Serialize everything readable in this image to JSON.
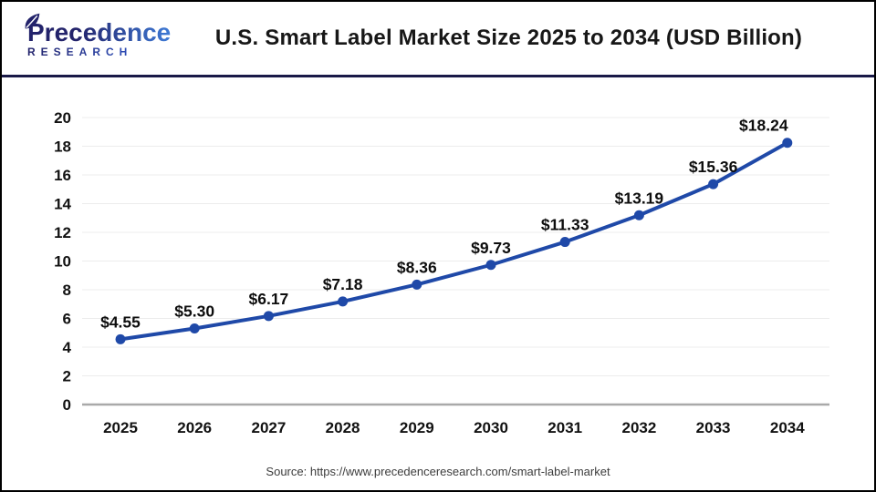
{
  "header": {
    "logo": {
      "name_line": "Precedence",
      "sub_line": "RESEARCH"
    },
    "title": "U.S. Smart Label Market Size 2025 to 2034 (USD Billion)"
  },
  "chart_data": {
    "type": "line",
    "title": "U.S. Smart Label Market Size 2025 to 2034 (USD Billion)",
    "categories": [
      "2025",
      "2026",
      "2027",
      "2028",
      "2029",
      "2030",
      "2031",
      "2032",
      "2033",
      "2034"
    ],
    "values": [
      4.55,
      5.3,
      6.17,
      7.18,
      8.36,
      9.73,
      11.33,
      13.19,
      15.36,
      18.24
    ],
    "point_labels": [
      "$4.55",
      "$5.30",
      "$6.17",
      "$7.18",
      "$8.36",
      "$9.73",
      "$11.33",
      "$13.19",
      "$15.36",
      "$18.24"
    ],
    "xlabel": "",
    "ylabel": "",
    "ylim": [
      0,
      20
    ],
    "ytick_step": 2,
    "grid": true,
    "legend": "none",
    "line_color": "#1f49a8",
    "marker_color": "#1f49a8",
    "grid_color": "#ececec",
    "baseline_color": "#a9a9a9"
  },
  "footer": {
    "source": "Source: https://www.precedenceresearch.com/smart-label-market"
  },
  "theme": {
    "header_divider": "#191947",
    "title_color": "#171717",
    "logo_gradient_start": "#23236b",
    "logo_gradient_end": "#3e7ad6"
  }
}
